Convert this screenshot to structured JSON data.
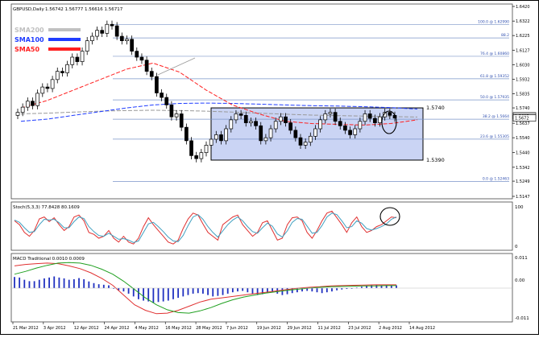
{
  "header": {
    "symbol_label": "GBPUSD,Daily",
    "ohlc": "1.56742 1.56777 1.56616 1.56717"
  },
  "legend": [
    {
      "label": "SMA200",
      "color": "#c0c0c0"
    },
    {
      "label": "SMA100",
      "color": "#1f3cff"
    },
    {
      "label": "SMA50",
      "color": "#ff2020"
    }
  ],
  "colors": {
    "candle": "#000000",
    "range_box": "#b8c6f0",
    "fib_line": "#7a94c8",
    "fib_text": "#3050b0",
    "stoch_k": "#e03030",
    "stoch_d": "#40a0c0",
    "macd_line": "#e03030",
    "signal_line": "#20a020",
    "histogram": "#2030c0",
    "grid": "#9a9a9a"
  },
  "chart_data": [
    {
      "type": "line",
      "title": "GBPUSD,Daily 1.56742 1.56777 1.56616 1.56717",
      "series": [
        {
          "name": "SMA200",
          "values": [
            1.57,
            1.5705,
            1.5712,
            1.5718,
            1.5722,
            1.5724,
            1.5722,
            1.5718,
            1.5712,
            1.5705,
            1.5698,
            1.5692,
            1.5688,
            1.5685,
            1.5682,
            1.5679
          ]
        },
        {
          "name": "SMA100",
          "values": [
            1.565,
            1.5665,
            1.569,
            1.5715,
            1.574,
            1.576,
            1.577,
            1.5772,
            1.577,
            1.5765,
            1.576,
            1.5755,
            1.5752,
            1.5748,
            1.5742,
            1.5732
          ]
        },
        {
          "name": "SMA50",
          "values": [
            1.574,
            1.579,
            1.586,
            1.593,
            1.6,
            1.604,
            1.598,
            1.586,
            1.576,
            1.57,
            1.565,
            1.5635,
            1.563,
            1.5625,
            1.5635,
            1.566
          ]
        }
      ],
      "candles_close": [
        1.571,
        1.5745,
        1.5785,
        1.5755,
        1.5838,
        1.588,
        1.587,
        1.593,
        1.5985,
        1.5975,
        1.603,
        1.608,
        1.605,
        1.612,
        1.619,
        1.622,
        1.626,
        1.624,
        1.63,
        1.629,
        1.622,
        1.619,
        1.62,
        1.612,
        1.608,
        1.606,
        1.5985,
        1.595,
        1.584,
        1.581,
        1.576,
        1.568,
        1.57,
        1.561,
        1.552,
        1.542,
        1.54,
        1.544,
        1.549,
        1.553,
        1.556,
        1.552,
        1.56,
        1.566,
        1.57,
        1.569,
        1.564,
        1.565,
        1.562,
        1.552,
        1.554,
        1.56,
        1.565,
        1.568,
        1.564,
        1.559,
        1.554,
        1.549,
        1.551,
        1.555,
        1.56,
        1.566,
        1.57,
        1.571,
        1.565,
        1.562,
        1.559,
        1.556,
        1.56,
        1.565,
        1.57,
        1.567,
        1.564,
        1.568,
        1.571,
        1.569,
        1.5672
      ],
      "range_box": {
        "top": 1.574,
        "bottom": 1.539,
        "top_label": "1.5740",
        "bottom_label": "1.5390"
      },
      "fib_levels": [
        {
          "label": "100.0 @ 1.62990",
          "value": 1.6299
        },
        {
          "label": "88.2",
          "value": 1.6209
        },
        {
          "label": "76.4 @ 1.60860",
          "value": 1.6086
        },
        {
          "label": "61.8 @ 1.59352",
          "value": 1.59352
        },
        {
          "label": "50.0 @ 1.57935",
          "value": 1.57935
        },
        {
          "label": "38.2 @ 1.5664",
          "value": 1.5664
        },
        {
          "label": "23.6 @ 1.55305",
          "value": 1.55305
        },
        {
          "label": "0.0 @ 1.52463",
          "value": 1.52463
        }
      ],
      "y_ticks": [
        "1.6420",
        "1.6322",
        "1.6225",
        "1.6127",
        "1.6030",
        "1.5932",
        "1.5835",
        "1.5740",
        "1.5637",
        "1.5540",
        "1.5440",
        "1.5342",
        "1.5249",
        "1.5147"
      ],
      "y_price_labels": [
        "1.5687",
        "1.5672"
      ],
      "ylim": [
        1.5147,
        1.642
      ],
      "x_ticks": [
        "21 Mar 2012",
        "3 Apr 2012",
        "12 Apr 2012",
        "24 Apr 2012",
        "4 May 2012",
        "16 May 2012",
        "28 May 2012",
        "7 Jun 2012",
        "19 Jun 2012",
        "29 Jun 2012",
        "11 Jul 2012",
        "23 Jul 2012",
        "2 Aug 2012",
        "14 Aug 2012"
      ]
    },
    {
      "type": "line",
      "title": "Stoch(5,3,3) 77.8428 80.1609",
      "ylim": [
        0,
        100
      ],
      "y_ticks": [
        "100",
        "0"
      ],
      "series": [
        {
          "values": [
            70,
            60,
            40,
            30,
            45,
            75,
            80,
            68,
            78,
            60,
            45,
            55,
            80,
            85,
            70,
            40,
            35,
            25,
            30,
            45,
            25,
            15,
            30,
            15,
            10,
            25,
            55,
            78,
            60,
            45,
            30,
            15,
            10,
            20,
            50,
            75,
            90,
            85,
            62,
            40,
            30,
            20,
            60,
            70,
            80,
            85,
            60,
            45,
            30,
            40,
            65,
            70,
            45,
            20,
            25,
            60,
            78,
            80,
            70,
            40,
            25,
            45,
            70,
            90,
            95,
            78,
            60,
            40,
            65,
            80,
            55,
            40,
            45,
            55,
            60,
            70,
            80,
            78
          ]
        },
        {
          "values": [
            72,
            66,
            52,
            40,
            42,
            60,
            74,
            72,
            74,
            65,
            52,
            52,
            68,
            80,
            76,
            55,
            42,
            32,
            30,
            38,
            30,
            22,
            24,
            20,
            14,
            18,
            40,
            62,
            66,
            55,
            42,
            28,
            18,
            16,
            32,
            58,
            80,
            86,
            74,
            55,
            40,
            28,
            44,
            60,
            72,
            80,
            70,
            55,
            42,
            38,
            52,
            64,
            56,
            36,
            28,
            44,
            66,
            76,
            74,
            56,
            38,
            40,
            58,
            80,
            90,
            86,
            70,
            52,
            55,
            70,
            64,
            50,
            46,
            50,
            55,
            62,
            74,
            80
          ]
        }
      ]
    },
    {
      "type": "bar",
      "title": "MACD Traditional 0.0010 0.0009",
      "ylim": [
        -0.011,
        0.011
      ],
      "y_ticks": [
        "0.011",
        "0.00",
        "-0.011"
      ],
      "series": [
        {
          "values": [
            0.004,
            0.0038,
            0.003,
            0.0025,
            0.0025,
            0.003,
            0.0035,
            0.0038,
            0.0042,
            0.0038,
            0.0035,
            0.003,
            0.0032,
            0.0036,
            0.0032,
            0.0024,
            0.0018,
            0.0014,
            0.0012,
            0.001,
            0.0,
            -0.0008,
            -0.0012,
            -0.002,
            -0.003,
            -0.004,
            -0.0045,
            -0.0048,
            -0.0052,
            -0.005,
            -0.0048,
            -0.0045,
            -0.004,
            -0.0035,
            -0.003,
            -0.0025,
            -0.002,
            -0.0018,
            -0.002,
            -0.0025,
            -0.003,
            -0.0028,
            -0.0025,
            -0.002,
            -0.0015,
            -0.0012,
            -0.001,
            -0.0015,
            -0.002,
            -0.0025,
            -0.0022,
            -0.0018,
            -0.0015,
            -0.002,
            -0.0025,
            -0.0022,
            -0.0018,
            -0.0015,
            -0.0012,
            -0.001,
            -0.0012,
            -0.0015,
            -0.0018,
            -0.0015,
            -0.0012,
            -0.0008,
            -0.0005,
            -0.0003,
            0.0,
            0.0002,
            0.0005,
            0.0008,
            0.001,
            0.0012,
            0.001,
            0.0011,
            0.001,
            0.001
          ]
        },
        {
          "values": [
            0.008,
            0.0085,
            0.0088,
            0.009,
            0.0088,
            0.008,
            0.007,
            0.0055,
            0.0035,
            0.001,
            -0.0025,
            -0.006,
            -0.008,
            -0.0092,
            -0.009,
            -0.008,
            -0.0065,
            -0.005,
            -0.004,
            -0.0035,
            -0.003,
            -0.0025,
            -0.002,
            -0.0015,
            -0.001,
            -0.0005,
            0.0,
            0.0003,
            0.0005,
            0.0008,
            0.0009,
            0.001,
            0.0011,
            0.0012,
            0.0012,
            0.0012
          ]
        },
        {
          "values": [
            0.005,
            0.006,
            0.0072,
            0.0082,
            0.009,
            0.0092,
            0.009,
            0.0082,
            0.0068,
            0.005,
            0.0025,
            -0.0005,
            -0.0035,
            -0.006,
            -0.0078,
            -0.0088,
            -0.009,
            -0.0082,
            -0.007,
            -0.0055,
            -0.0042,
            -0.0032,
            -0.0025,
            -0.0018,
            -0.0013,
            -0.0008,
            -0.0004,
            0.0,
            0.0003,
            0.0005,
            0.0006,
            0.0007,
            0.0008,
            0.0008,
            0.0009,
            0.0009
          ]
        }
      ]
    }
  ]
}
